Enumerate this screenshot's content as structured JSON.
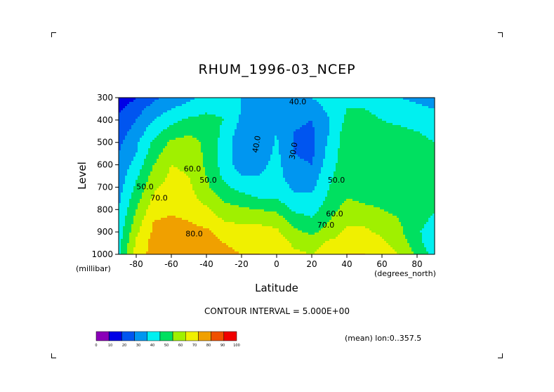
{
  "chart_data": {
    "type": "heatmap",
    "title": "RHUM_1996-03_NCEP",
    "xlabel": "Latitude",
    "ylabel": "Level",
    "x_unit": "(degrees_north)",
    "y_unit": "(millibar)",
    "xlim": [
      -90,
      90
    ],
    "ylim": [
      1000,
      300
    ],
    "x_ticks": [
      -80,
      -60,
      -40,
      -20,
      0,
      20,
      40,
      60,
      80
    ],
    "x_tick_labels": [
      "-80",
      "-60",
      "-40",
      "-20",
      "0",
      "20",
      "40",
      "60",
      "80"
    ],
    "y_ticks": [
      300,
      400,
      500,
      600,
      700,
      800,
      900,
      1000
    ],
    "y_tick_labels": [
      "300",
      "400",
      "500",
      "600",
      "700",
      "800",
      "900",
      "1000"
    ],
    "contour_interval": 5,
    "contour_note": "CONTOUR INTERVAL = 5.000E+00",
    "subset_note": "(mean) lon:0..357.5",
    "contour_labels": [
      {
        "text": "40.0",
        "x": 12,
        "y": 330
      },
      {
        "text": "40.0",
        "x": -10,
        "y": 510
      },
      {
        "text": "30.0",
        "x": 11,
        "y": 540
      },
      {
        "text": "60.0",
        "x": -48,
        "y": 630
      },
      {
        "text": "50.0",
        "x": -39,
        "y": 680
      },
      {
        "text": "50.0",
        "x": 34,
        "y": 680
      },
      {
        "text": "50.0",
        "x": -75,
        "y": 710
      },
      {
        "text": "70.0",
        "x": -67,
        "y": 760
      },
      {
        "text": "60.0",
        "x": 33,
        "y": 830
      },
      {
        "text": "70.0",
        "x": 28,
        "y": 880
      },
      {
        "text": "80.0",
        "x": -47,
        "y": 920
      }
    ],
    "colorbar": {
      "levels": [
        "0",
        "10",
        "20",
        "30",
        "40",
        "50",
        "60",
        "70",
        "80",
        "90",
        "100"
      ],
      "colors": [
        "#8a00b8",
        "#0000e6",
        "#0055f0",
        "#0096f0",
        "#00f0f0",
        "#00e060",
        "#a0f000",
        "#f0f000",
        "#f0a000",
        "#f05000",
        "#f00000"
      ]
    },
    "field_approx": {
      "lat": [
        -90,
        -80,
        -70,
        -60,
        -50,
        -40,
        -30,
        -20,
        -10,
        0,
        10,
        20,
        30,
        40,
        50,
        60,
        70,
        80,
        90
      ],
      "lev": [
        300,
        350,
        400,
        450,
        500,
        550,
        600,
        650,
        700,
        750,
        800,
        850,
        900,
        950,
        1000
      ],
      "rh": [
        [
          12,
          20,
          28,
          33,
          38,
          42,
          45,
          40,
          36,
          37,
          38,
          40,
          44,
          48,
          45,
          42,
          40,
          38,
          36
        ],
        [
          18,
          26,
          34,
          40,
          44,
          48,
          48,
          40,
          36,
          38,
          37,
          36,
          42,
          50,
          50,
          46,
          44,
          42,
          40
        ],
        [
          22,
          30,
          40,
          47,
          52,
          53,
          50,
          38,
          35,
          39,
          32,
          30,
          40,
          52,
          54,
          50,
          48,
          46,
          44
        ],
        [
          25,
          34,
          46,
          54,
          58,
          56,
          48,
          35,
          34,
          40,
          30,
          28,
          40,
          55,
          55,
          53,
          52,
          50,
          48
        ],
        [
          28,
          38,
          52,
          62,
          64,
          58,
          46,
          32,
          34,
          41,
          29,
          27,
          42,
          56,
          55,
          54,
          53,
          52,
          50
        ],
        [
          30,
          40,
          56,
          66,
          66,
          58,
          46,
          33,
          35,
          42,
          30,
          28,
          44,
          56,
          56,
          54,
          54,
          53,
          52
        ],
        [
          32,
          44,
          60,
          70,
          68,
          58,
          46,
          35,
          37,
          43,
          32,
          30,
          46,
          56,
          56,
          55,
          54,
          54,
          54
        ],
        [
          34,
          48,
          64,
          72,
          70,
          60,
          48,
          40,
          40,
          44,
          34,
          34,
          48,
          57,
          57,
          56,
          55,
          55,
          55
        ],
        [
          36,
          52,
          68,
          74,
          72,
          62,
          52,
          46,
          44,
          46,
          38,
          38,
          50,
          58,
          57,
          56,
          56,
          56,
          56
        ],
        [
          38,
          56,
          72,
          76,
          74,
          66,
          58,
          54,
          50,
          50,
          42,
          42,
          52,
          60,
          58,
          57,
          56,
          56,
          55
        ],
        [
          40,
          60,
          76,
          78,
          76,
          72,
          64,
          62,
          60,
          58,
          48,
          46,
          56,
          64,
          62,
          60,
          58,
          56,
          52
        ],
        [
          42,
          64,
          80,
          82,
          80,
          76,
          70,
          68,
          68,
          66,
          56,
          52,
          60,
          68,
          68,
          64,
          60,
          56,
          46
        ],
        [
          44,
          68,
          82,
          86,
          84,
          82,
          76,
          74,
          74,
          72,
          62,
          58,
          64,
          72,
          72,
          68,
          62,
          52,
          42
        ],
        [
          46,
          72,
          84,
          88,
          86,
          84,
          80,
          78,
          78,
          76,
          68,
          66,
          72,
          76,
          76,
          72,
          66,
          54,
          42
        ],
        [
          48,
          74,
          84,
          88,
          86,
          84,
          82,
          80,
          80,
          78,
          72,
          70,
          76,
          80,
          80,
          76,
          70,
          58,
          46
        ]
      ]
    }
  }
}
